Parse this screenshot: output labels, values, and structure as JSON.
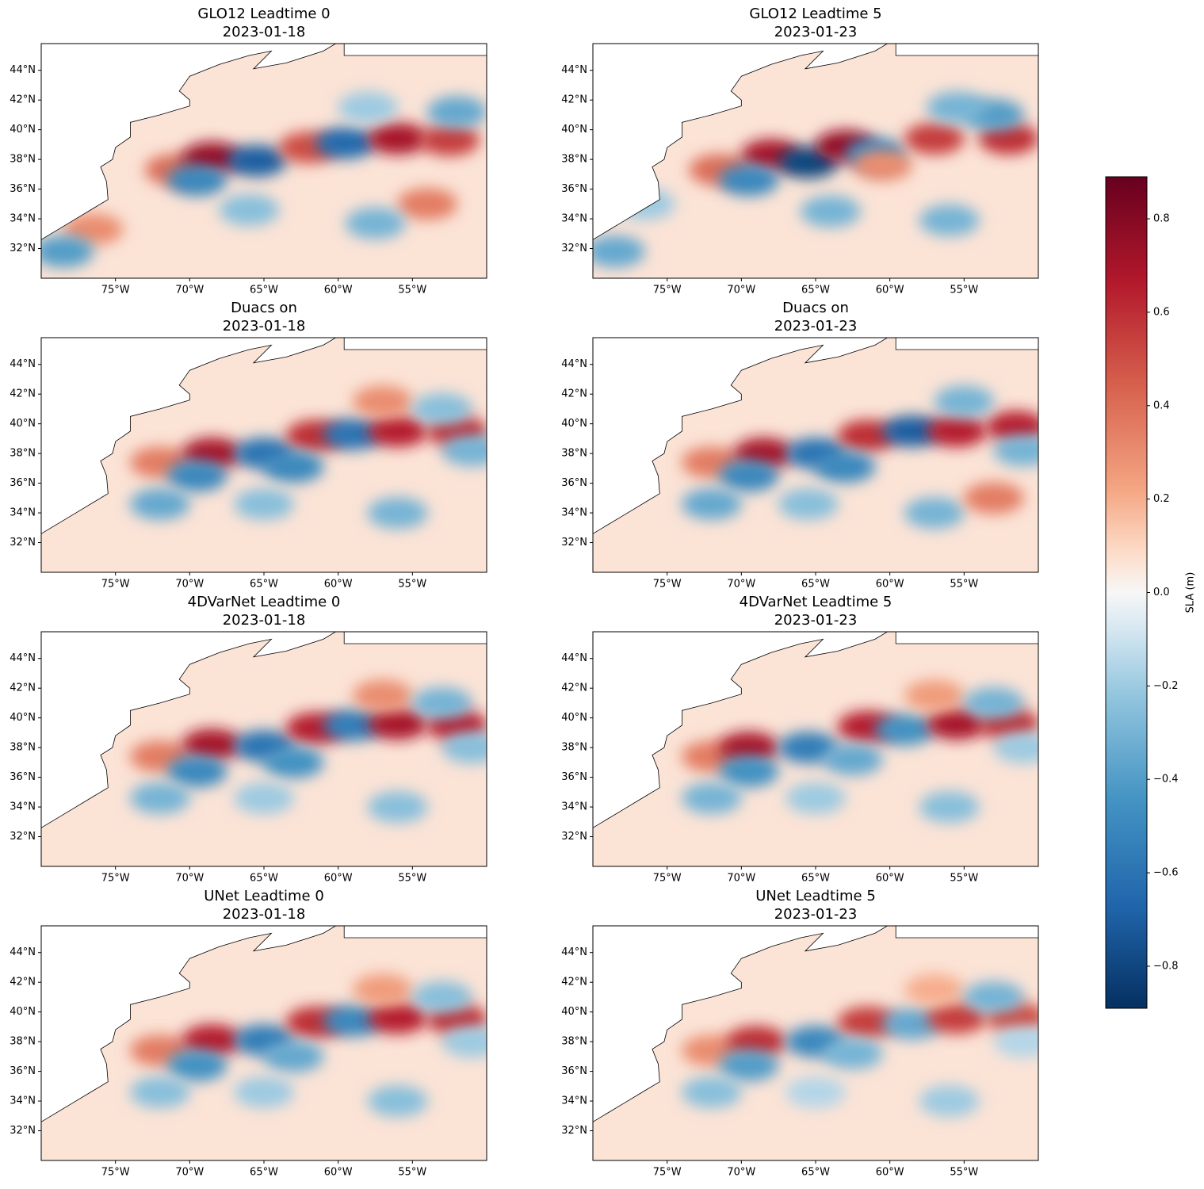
{
  "chart_data": [
    {
      "type": "map",
      "title": "GLO12 Leadtime 0",
      "subtitle": "2023-01-18",
      "xlim": [
        -80,
        -50
      ],
      "ylim": [
        30,
        45.8
      ],
      "xticks": [
        {
          "value": -75,
          "label": "75°W"
        },
        {
          "value": -70,
          "label": "70°W"
        },
        {
          "value": -65,
          "label": "65°W"
        },
        {
          "value": -60,
          "label": "60°W"
        },
        {
          "value": -55,
          "label": "55°W"
        }
      ],
      "yticks": [
        {
          "value": 32,
          "label": "32°N"
        },
        {
          "value": 34,
          "label": "34°N"
        },
        {
          "value": 36,
          "label": "36°N"
        },
        {
          "value": 38,
          "label": "38°N"
        },
        {
          "value": 40,
          "label": "40°N"
        },
        {
          "value": 42,
          "label": "42°N"
        },
        {
          "value": 44,
          "label": "44°N"
        }
      ],
      "x": [
        -76.5,
        -71,
        -68.5,
        -65.5,
        -69.5,
        -62,
        -59.5,
        -56,
        -52.5,
        -54,
        -57.5,
        -66,
        -58,
        -52,
        -78.5
      ],
      "y": [
        33.3,
        37.3,
        38.1,
        37.9,
        36.6,
        38.8,
        39.1,
        39.4,
        39.3,
        35,
        33.7,
        34.6,
        41.5,
        41.2,
        31.8
      ],
      "values": [
        0.3,
        0.4,
        0.75,
        -0.7,
        -0.5,
        0.5,
        -0.65,
        0.7,
        0.55,
        0.35,
        -0.3,
        -0.25,
        -0.2,
        -0.35,
        -0.4
      ]
    },
    {
      "type": "map",
      "title": "GLO12 Leadtime 5",
      "subtitle": "2023-01-23",
      "xlim": [
        -80,
        -50
      ],
      "ylim": [
        30,
        45.8
      ],
      "xticks": [
        {
          "value": -75,
          "label": "75°W"
        },
        {
          "value": -70,
          "label": "70°W"
        },
        {
          "value": -65,
          "label": "65°W"
        },
        {
          "value": -60,
          "label": "60°W"
        },
        {
          "value": -55,
          "label": "55°W"
        }
      ],
      "yticks": [
        {
          "value": 32,
          "label": "32°N"
        },
        {
          "value": 34,
          "label": "34°N"
        },
        {
          "value": 36,
          "label": "36°N"
        },
        {
          "value": 38,
          "label": "38°N"
        },
        {
          "value": 40,
          "label": "40°N"
        },
        {
          "value": 42,
          "label": "42°N"
        },
        {
          "value": 44,
          "label": "44°N"
        }
      ],
      "x": [
        -76.5,
        -71.5,
        -68,
        -65.5,
        -63,
        -61,
        -57,
        -52,
        -69.5,
        -60.5,
        -56,
        -64,
        -53,
        -55.5,
        -78.5
      ],
      "y": [
        35,
        37.3,
        38.3,
        37.8,
        38.9,
        38.4,
        39.4,
        39.4,
        36.6,
        37.6,
        33.9,
        34.5,
        41,
        41.5,
        31.8
      ],
      "values": [
        -0.2,
        0.4,
        0.7,
        -0.8,
        0.75,
        -0.5,
        0.55,
        0.6,
        -0.5,
        0.3,
        -0.3,
        -0.3,
        -0.4,
        -0.3,
        -0.35
      ]
    },
    {
      "type": "map",
      "title": "Duacs on",
      "subtitle": "2023-01-18",
      "xlim": [
        -80,
        -50
      ],
      "ylim": [
        30,
        45.8
      ],
      "xticks": [
        {
          "value": -75,
          "label": "75°W"
        },
        {
          "value": -70,
          "label": "70°W"
        },
        {
          "value": -65,
          "label": "65°W"
        },
        {
          "value": -60,
          "label": "60°W"
        },
        {
          "value": -55,
          "label": "55°W"
        }
      ],
      "yticks": [
        {
          "value": 32,
          "label": "32°N"
        },
        {
          "value": 34,
          "label": "34°N"
        },
        {
          "value": 36,
          "label": "36°N"
        },
        {
          "value": 38,
          "label": "38°N"
        },
        {
          "value": 40,
          "label": "40°N"
        },
        {
          "value": 42,
          "label": "42°N"
        },
        {
          "value": 44,
          "label": "44°N"
        }
      ],
      "x": [
        -72,
        -68.5,
        -65,
        -61.5,
        -59,
        -56,
        -52,
        -69.5,
        -63,
        -72,
        -56,
        -65,
        -51,
        -57,
        -53
      ],
      "y": [
        37.4,
        38,
        38,
        39.2,
        39.3,
        39.5,
        39.5,
        36.5,
        37.1,
        34.6,
        34,
        34.6,
        38.2,
        41.5,
        41
      ],
      "values": [
        0.35,
        0.7,
        -0.6,
        0.6,
        -0.6,
        0.65,
        0.6,
        -0.5,
        -0.5,
        -0.35,
        -0.3,
        -0.25,
        -0.3,
        0.3,
        -0.25
      ]
    },
    {
      "type": "map",
      "title": "Duacs on",
      "subtitle": "2023-01-23",
      "xlim": [
        -80,
        -50
      ],
      "ylim": [
        30,
        45.8
      ],
      "xticks": [
        {
          "value": -75,
          "label": "75°W"
        },
        {
          "value": -70,
          "label": "70°W"
        },
        {
          "value": -65,
          "label": "65°W"
        },
        {
          "value": -60,
          "label": "60°W"
        },
        {
          "value": -55,
          "label": "55°W"
        }
      ],
      "yticks": [
        {
          "value": 32,
          "label": "32°N"
        },
        {
          "value": 34,
          "label": "34°N"
        },
        {
          "value": 36,
          "label": "36°N"
        },
        {
          "value": 38,
          "label": "38°N"
        },
        {
          "value": 40,
          "label": "40°N"
        },
        {
          "value": 42,
          "label": "42°N"
        },
        {
          "value": 44,
          "label": "44°N"
        }
      ],
      "x": [
        -72,
        -68.5,
        -65,
        -61.5,
        -58.5,
        -55.5,
        -51.5,
        -69.5,
        -63,
        -72,
        -57,
        -65.5,
        -51,
        -53,
        -55
      ],
      "y": [
        37.4,
        38,
        38,
        39.2,
        39.5,
        39.5,
        39.8,
        36.5,
        37.1,
        34.6,
        34,
        34.6,
        38.2,
        35,
        41.5
      ],
      "values": [
        0.35,
        0.7,
        -0.6,
        0.6,
        -0.7,
        0.65,
        0.65,
        -0.5,
        -0.5,
        -0.35,
        -0.3,
        -0.25,
        -0.3,
        0.35,
        -0.3
      ]
    },
    {
      "type": "map",
      "title": "4DVarNet Leadtime 0",
      "subtitle": "2023-01-18",
      "xlim": [
        -80,
        -50
      ],
      "ylim": [
        30,
        45.8
      ],
      "xticks": [
        {
          "value": -75,
          "label": "75°W"
        },
        {
          "value": -70,
          "label": "70°W"
        },
        {
          "value": -65,
          "label": "65°W"
        },
        {
          "value": -60,
          "label": "60°W"
        },
        {
          "value": -55,
          "label": "55°W"
        }
      ],
      "yticks": [
        {
          "value": 32,
          "label": "32°N"
        },
        {
          "value": 34,
          "label": "34°N"
        },
        {
          "value": 36,
          "label": "36°N"
        },
        {
          "value": 38,
          "label": "38°N"
        },
        {
          "value": 40,
          "label": "40°N"
        },
        {
          "value": 42,
          "label": "42°N"
        },
        {
          "value": 44,
          "label": "44°N"
        }
      ],
      "x": [
        -72,
        -68.5,
        -65,
        -61.5,
        -59,
        -56,
        -52,
        -69.5,
        -63,
        -72,
        -56,
        -65,
        -51,
        -57,
        -53
      ],
      "y": [
        37.4,
        38.2,
        38.1,
        39.3,
        39.5,
        39.6,
        39.5,
        36.4,
        37,
        34.6,
        34,
        34.6,
        38,
        41.5,
        41
      ],
      "values": [
        0.35,
        0.7,
        -0.6,
        0.65,
        -0.55,
        0.7,
        0.65,
        -0.5,
        -0.45,
        -0.3,
        -0.25,
        -0.2,
        -0.25,
        0.3,
        -0.3
      ]
    },
    {
      "type": "map",
      "title": "4DVarNet Leadtime 5",
      "subtitle": "2023-01-23",
      "xlim": [
        -80,
        -50
      ],
      "ylim": [
        30,
        45.8
      ],
      "xticks": [
        {
          "value": -75,
          "label": "75°W"
        },
        {
          "value": -70,
          "label": "70°W"
        },
        {
          "value": -65,
          "label": "65°W"
        },
        {
          "value": -60,
          "label": "60°W"
        },
        {
          "value": -55,
          "label": "55°W"
        }
      ],
      "yticks": [
        {
          "value": 32,
          "label": "32°N"
        },
        {
          "value": 34,
          "label": "34°N"
        },
        {
          "value": 36,
          "label": "36°N"
        },
        {
          "value": 38,
          "label": "38°N"
        },
        {
          "value": 40,
          "label": "40°N"
        },
        {
          "value": 42,
          "label": "42°N"
        },
        {
          "value": 44,
          "label": "44°N"
        }
      ],
      "x": [
        -72,
        -69.5,
        -65.5,
        -61.5,
        -59,
        -55.5,
        -52,
        -69.5,
        -62.5,
        -72,
        -56,
        -65,
        -51,
        -57,
        -53
      ],
      "y": [
        37.4,
        38,
        38,
        39.4,
        39.2,
        39.6,
        39.6,
        36.4,
        37.2,
        34.6,
        34,
        34.6,
        38,
        41.5,
        41
      ],
      "values": [
        0.35,
        0.7,
        -0.55,
        0.65,
        -0.45,
        0.7,
        0.6,
        -0.45,
        -0.35,
        -0.3,
        -0.25,
        -0.2,
        -0.2,
        0.25,
        -0.3
      ]
    },
    {
      "type": "map",
      "title": "UNet Leadtime 0",
      "subtitle": "2023-01-18",
      "xlim": [
        -80,
        -50
      ],
      "ylim": [
        30,
        45.8
      ],
      "xticks": [
        {
          "value": -75,
          "label": "75°W"
        },
        {
          "value": -70,
          "label": "70°W"
        },
        {
          "value": -65,
          "label": "65°W"
        },
        {
          "value": -60,
          "label": "60°W"
        },
        {
          "value": -55,
          "label": "55°W"
        }
      ],
      "yticks": [
        {
          "value": 32,
          "label": "32°N"
        },
        {
          "value": 34,
          "label": "34°N"
        },
        {
          "value": 36,
          "label": "36°N"
        },
        {
          "value": 38,
          "label": "38°N"
        },
        {
          "value": 40,
          "label": "40°N"
        },
        {
          "value": 42,
          "label": "42°N"
        },
        {
          "value": 44,
          "label": "44°N"
        }
      ],
      "x": [
        -72,
        -68.5,
        -65,
        -61.5,
        -59,
        -56,
        -52,
        -69.5,
        -63,
        -72,
        -56,
        -65,
        -51,
        -57,
        -53
      ],
      "y": [
        37.4,
        38.1,
        38.1,
        39.3,
        39.4,
        39.6,
        39.5,
        36.4,
        37,
        34.6,
        34,
        34.6,
        38,
        41.5,
        41
      ],
      "values": [
        0.35,
        0.65,
        -0.55,
        0.6,
        -0.5,
        0.65,
        0.6,
        -0.45,
        -0.35,
        -0.25,
        -0.25,
        -0.2,
        -0.2,
        0.25,
        -0.25
      ]
    },
    {
      "type": "map",
      "title": "UNet Leadtime 5",
      "subtitle": "2023-01-23",
      "xlim": [
        -80,
        -50
      ],
      "ylim": [
        30,
        45.8
      ],
      "xticks": [
        {
          "value": -75,
          "label": "75°W"
        },
        {
          "value": -70,
          "label": "70°W"
        },
        {
          "value": -65,
          "label": "65°W"
        },
        {
          "value": -60,
          "label": "60°W"
        },
        {
          "value": -55,
          "label": "55°W"
        }
      ],
      "yticks": [
        {
          "value": 32,
          "label": "32°N"
        },
        {
          "value": 34,
          "label": "34°N"
        },
        {
          "value": 36,
          "label": "36°N"
        },
        {
          "value": 38,
          "label": "38°N"
        },
        {
          "value": 40,
          "label": "40°N"
        },
        {
          "value": 42,
          "label": "42°N"
        },
        {
          "value": 44,
          "label": "44°N"
        }
      ],
      "x": [
        -72,
        -69,
        -65,
        -61.5,
        -58.5,
        -55.5,
        -51.5,
        -69.5,
        -62.5,
        -72,
        -56,
        -65,
        -51,
        -57,
        -53
      ],
      "y": [
        37.4,
        38,
        38,
        39.3,
        39.2,
        39.6,
        39.6,
        36.4,
        37.2,
        34.6,
        34,
        34.6,
        38,
        41.5,
        41
      ],
      "values": [
        0.3,
        0.6,
        -0.5,
        0.55,
        -0.35,
        0.55,
        0.5,
        -0.4,
        -0.3,
        -0.25,
        -0.2,
        -0.15,
        -0.15,
        0.2,
        -0.3
      ]
    }
  ],
  "colorbar": {
    "label": "SLA (m)",
    "lim": [
      -0.89,
      0.89
    ],
    "ticks": [
      {
        "value": -0.8,
        "label": "−0.8"
      },
      {
        "value": -0.6,
        "label": "−0.6"
      },
      {
        "value": -0.4,
        "label": "−0.4"
      },
      {
        "value": -0.2,
        "label": "−0.2"
      },
      {
        "value": 0,
        "label": "0.0"
      },
      0.2,
      0.4,
      0.6,
      0.8
    ]
  }
}
